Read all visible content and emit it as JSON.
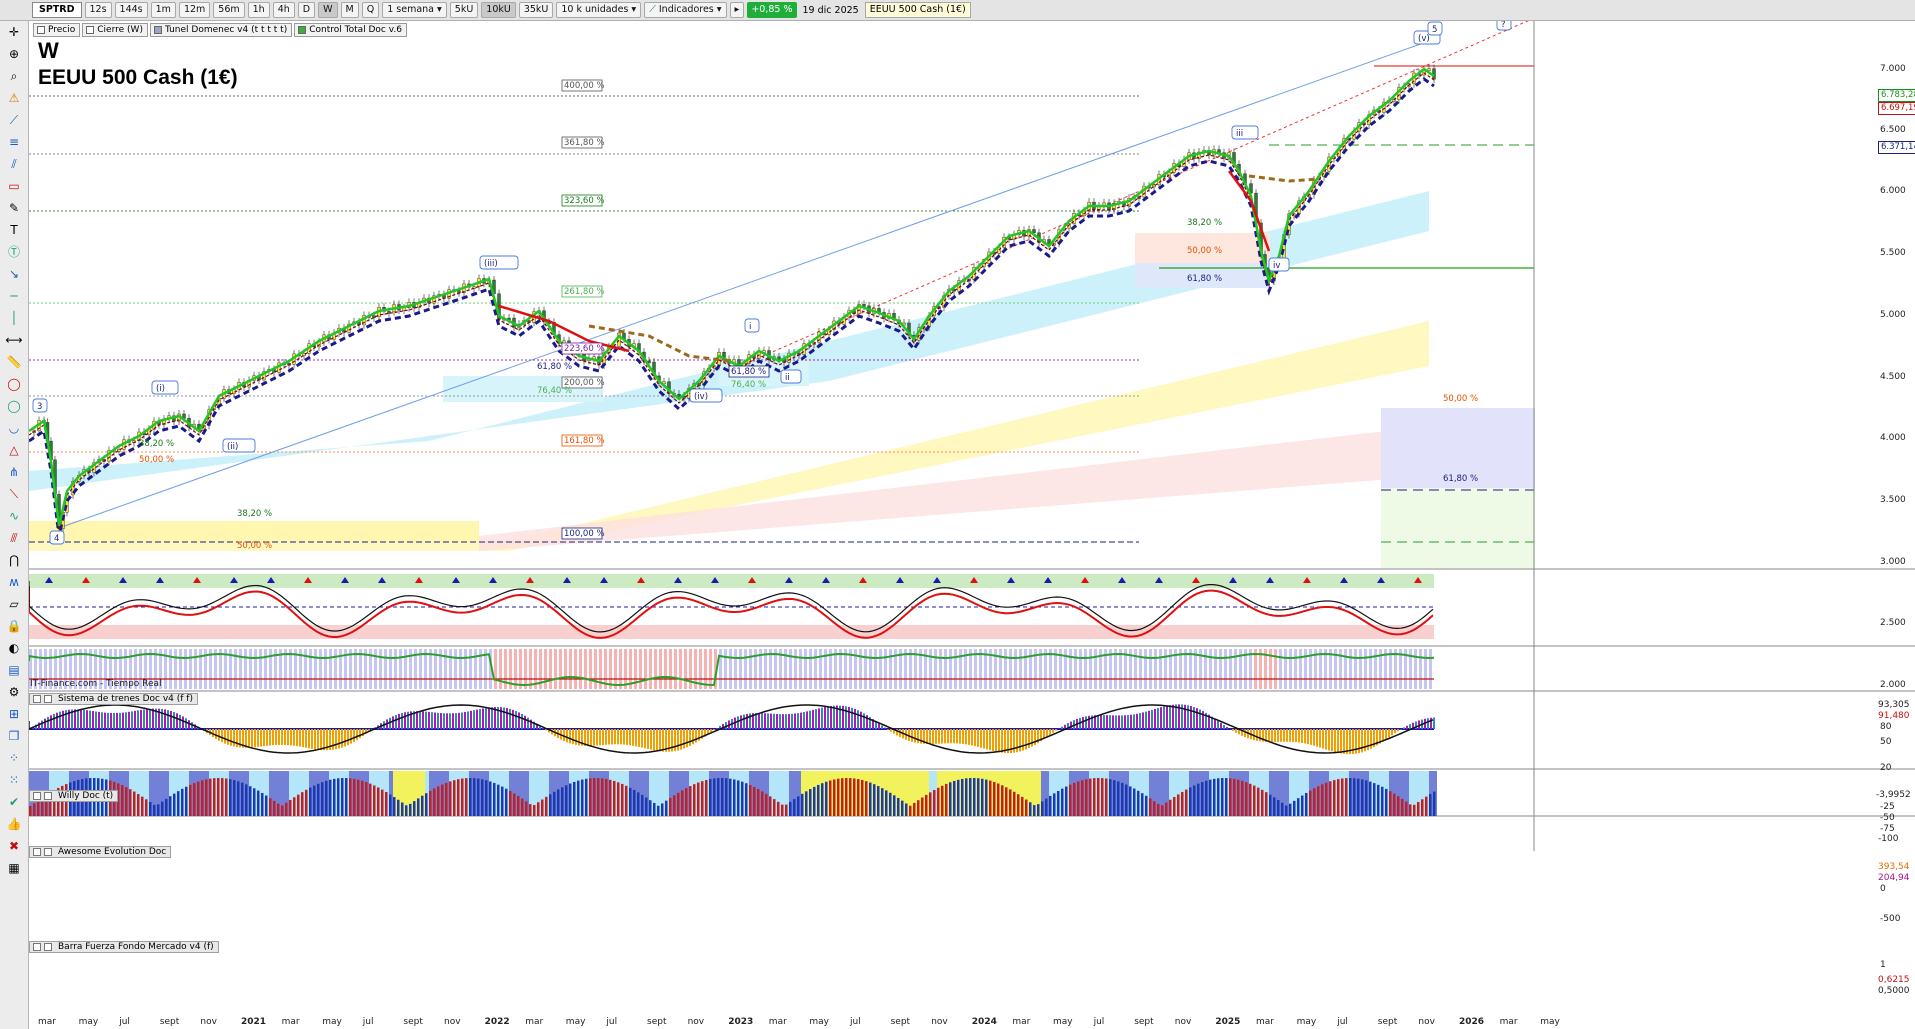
{
  "toolbar": {
    "symbol": "SPTRD",
    "timeframes": [
      "12s",
      "144s",
      "1m",
      "12m",
      "56m",
      "1h",
      "4h",
      "D",
      "W",
      "M",
      "Q"
    ],
    "active_timeframe": "W",
    "range_select": "1 semana",
    "volume_buttons": [
      "5kU",
      "10kU",
      "35kU"
    ],
    "active_volume": "10kU",
    "units_select": "10 k unidades",
    "indicators_label": "Indicadores",
    "change_badge": "+0,85 %",
    "date": "19 dic 2025",
    "instrument_title": "EEUU 500 Cash (1€)"
  },
  "legend_chips": [
    {
      "label": "Precio",
      "color": "#ffffff"
    },
    {
      "label": "Cierre (W)",
      "color": "#ffffff"
    },
    {
      "label": "Tunel Domenec v4 (t t t t t)",
      "color": "#9aa6c8"
    },
    {
      "label": "Control Total Doc v.6",
      "color": "#3cae3c"
    }
  ],
  "main_title": {
    "letter": "W",
    "name": "EEUU 500 Cash (1€)"
  },
  "feed_label": "IT-Finance.com - Tiempo Real",
  "price_axis": {
    "ticks": [
      "7.000",
      "6.500",
      "6.000",
      "5.500",
      "5.000",
      "4.500",
      "4.000",
      "3.500",
      "3.000",
      "2.500",
      "2.000"
    ],
    "tags": [
      {
        "text": "6.783,28",
        "color": "#1a8f1a"
      },
      {
        "text": "6.697,19",
        "color": "#c01010"
      },
      {
        "text": "6.371,14",
        "color": "#1a237e"
      }
    ]
  },
  "time_axis": [
    "mar",
    "may",
    "jul",
    "sept",
    "nov",
    "2021",
    "mar",
    "may",
    "jul",
    "sept",
    "nov",
    "2022",
    "mar",
    "may",
    "jul",
    "sept",
    "nov",
    "2023",
    "mar",
    "may",
    "jul",
    "sept",
    "nov",
    "2024",
    "mar",
    "may",
    "jul",
    "sept",
    "nov",
    "2025",
    "mar",
    "may",
    "jul",
    "sept",
    "nov",
    "2026",
    "mar",
    "may"
  ],
  "fib_labels": [
    {
      "text": "400,00 %",
      "color": "#555555"
    },
    {
      "text": "361,80 %",
      "color": "#555555"
    },
    {
      "text": "323,60 %",
      "color": "#1a7a1a"
    },
    {
      "text": "261,80 %",
      "color": "#4caf50"
    },
    {
      "text": "223,60 %",
      "color": "#7b1fa2"
    },
    {
      "text": "200,00 %",
      "color": "#555555"
    },
    {
      "text": "161,80 %",
      "color": "#e65100"
    },
    {
      "text": "100,00 %",
      "color": "#1a237e"
    },
    {
      "text": "61,80 %",
      "color": "#1a237e"
    },
    {
      "text": "76,40 %",
      "color": "#4caf50"
    },
    {
      "text": "61,80 %",
      "color": "#1a237e"
    },
    {
      "text": "76,40 %",
      "color": "#4caf50"
    },
    {
      "text": "38,20 %",
      "color": "#1a7a1a"
    },
    {
      "text": "50,00 %",
      "color": "#e65100"
    },
    {
      "text": "61,80 %",
      "color": "#1a237e"
    },
    {
      "text": "50,00 %",
      "color": "#e65100"
    },
    {
      "text": "61,80 %",
      "color": "#1a237e"
    },
    {
      "text": "38,20 %",
      "color": "#1a7a1a"
    },
    {
      "text": "50,00 %",
      "color": "#e65100"
    },
    {
      "text": "50,00 %",
      "color": "#e65100"
    },
    {
      "text": "38,20 %",
      "color": "#1a7a1a"
    }
  ],
  "wave_labels": [
    "3",
    "4",
    "(i)",
    "(ii)",
    "(iii)",
    "(iv)",
    "i",
    "ii",
    "iii",
    "iv",
    "(v)",
    "5",
    "?"
  ],
  "panels": [
    {
      "name": "Sistema de trenes Doc v4 (f f)",
      "axis": [
        "93,305",
        "91,480",
        "80",
        "50",
        "20"
      ]
    },
    {
      "name": "Willy Doc (t)",
      "axis": [
        "-3,9952",
        "-25",
        "-50",
        "-75",
        "-100"
      ]
    },
    {
      "name": "Awesome Evolution Doc",
      "axis": [
        "393,54",
        "204,94",
        "0",
        "-500"
      ]
    },
    {
      "name": "Barra Fuerza Fondo Mercado v4 (f)",
      "axis": [
        "1",
        "0,6215",
        "0,5000"
      ]
    }
  ],
  "colors": {
    "up": "#22a524",
    "down": "#e01010",
    "navy": "#1a1a8c",
    "accent_green": "#1fae3a"
  }
}
